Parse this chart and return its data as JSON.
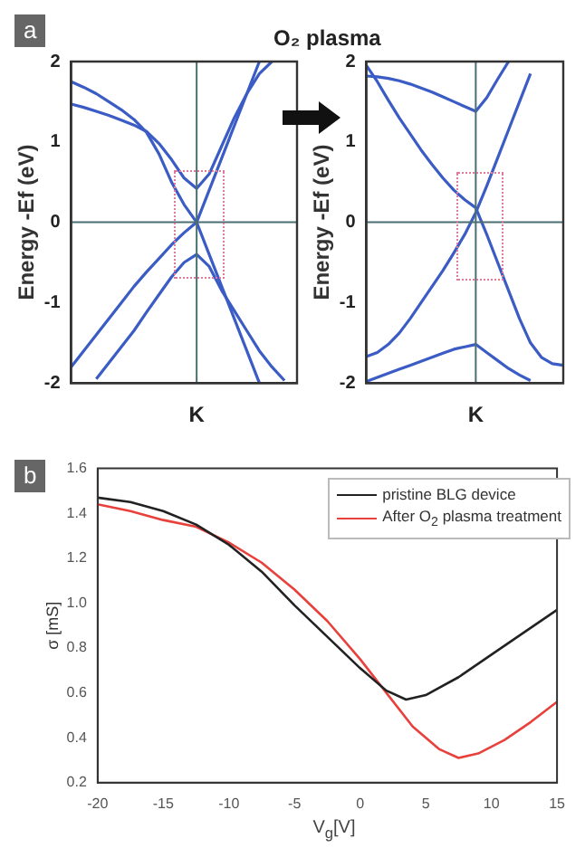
{
  "chart_data": [
    {
      "type": "line",
      "ylabel": "Energy -Ef (eV)",
      "annotations": [
        "a"
      ],
      "categories": [
        null,
        null,
        null,
        null,
        null,
        null,
        null,
        null,
        null,
        null,
        "K",
        null,
        null,
        null,
        null,
        null,
        null,
        null,
        null
      ],
      "ylim": [
        -2,
        2
      ],
      "yticks": [
        -2,
        -1,
        0,
        1,
        2
      ],
      "ref_lines": [
        {
          "axis": "y",
          "value": 0,
          "color": "#4a6e72"
        },
        {
          "axis": "x",
          "value": "K",
          "color": "#4a6e72"
        }
      ],
      "series": [
        {
          "color": "#3b5cc4",
          "values": [
            1.75,
            1.68,
            1.6,
            1.5,
            1.4,
            1.28,
            1.12,
            0.85,
            0.5,
            0.22,
            0,
            -0.4,
            -0.8,
            -1.2,
            -1.6,
            -2,
            null,
            null,
            null
          ]
        },
        {
          "color": "#3b5cc4",
          "values": [
            1.47,
            1.43,
            1.38,
            1.33,
            1.27,
            1.21,
            1.13,
            0.98,
            0.78,
            0.55,
            0.42,
            0.6,
            0.95,
            1.3,
            1.6,
            1.85,
            2,
            null,
            null
          ]
        },
        {
          "color": "#3b5cc4",
          "values": [
            -1.8,
            -1.6,
            -1.4,
            -1.2,
            -1,
            -0.8,
            -0.62,
            -0.45,
            -0.28,
            -0.13,
            0,
            0.4,
            0.8,
            1.2,
            1.6,
            2,
            null,
            null,
            null
          ]
        },
        {
          "color": "#3b5cc4",
          "values": [
            null,
            null,
            -1.95,
            -1.75,
            -1.55,
            -1.35,
            -1.12,
            -0.9,
            -0.68,
            -0.5,
            -0.4,
            -0.55,
            -0.85,
            -1.1,
            -1.35,
            -1.6,
            -1.8,
            -1.97,
            null
          ]
        }
      ]
    },
    {
      "type": "line",
      "ylabel": "Energy -Ef (eV)",
      "annotations": [
        "O₂ plasma"
      ],
      "categories": [
        null,
        null,
        null,
        null,
        null,
        null,
        null,
        null,
        null,
        null,
        "K",
        null,
        null,
        null,
        null,
        null,
        null,
        null,
        null
      ],
      "ylim": [
        -2,
        2
      ],
      "yticks": [
        -2,
        -1,
        0,
        1,
        2
      ],
      "ref_lines": [
        {
          "axis": "y",
          "value": 0,
          "color": "#4a6e72"
        },
        {
          "axis": "x",
          "value": "K",
          "color": "#4a6e72"
        }
      ],
      "series": [
        {
          "color": "#3b5cc4",
          "values": [
            1.82,
            1.81,
            1.79,
            1.76,
            1.72,
            1.67,
            1.62,
            1.56,
            1.5,
            1.44,
            1.38,
            1.55,
            1.78,
            2,
            null,
            null,
            null,
            null,
            null
          ]
        },
        {
          "color": "#3b5cc4",
          "values": [
            1.95,
            1.75,
            1.52,
            1.3,
            1.1,
            0.9,
            0.72,
            0.55,
            0.4,
            0.28,
            0.18,
            -0.15,
            -0.5,
            -0.85,
            -1.2,
            -1.5,
            -1.68,
            -1.76,
            -1.78
          ]
        },
        {
          "color": "#3b5cc4",
          "values": [
            -1.67,
            -1.62,
            -1.52,
            -1.38,
            -1.2,
            -1,
            -0.8,
            -0.6,
            -0.38,
            -0.15,
            0.12,
            0.45,
            0.8,
            1.15,
            1.5,
            1.85,
            null,
            null,
            null
          ]
        },
        {
          "color": "#3b5cc4",
          "values": [
            -1.98,
            -1.93,
            -1.88,
            -1.83,
            -1.78,
            -1.73,
            -1.68,
            -1.63,
            -1.58,
            -1.55,
            -1.52,
            -1.62,
            -1.72,
            -1.82,
            -1.9,
            -1.97,
            null,
            null,
            null
          ]
        }
      ]
    },
    {
      "type": "line",
      "xlabel": "V$_{g}$[V]",
      "ylabel": "σ [mS]",
      "annotations": [
        "b"
      ],
      "xlim": [
        -20,
        15
      ],
      "xticks": [
        -20,
        -15,
        -10,
        -5,
        0,
        5,
        10,
        15
      ],
      "ylim": [
        0.2,
        1.6
      ],
      "yticks": [
        0.2,
        0.4,
        0.6,
        0.8,
        {
          "value": 1,
          "label": "1.0"
        },
        1.2,
        1.4,
        1.6
      ],
      "legend": "top right",
      "series": [
        {
          "name": "pristine BLG device",
          "color": "#222222",
          "x": [
            -20,
            -17.5,
            -15,
            -12.5,
            -10,
            -7.5,
            -5,
            -2.5,
            0,
            2,
            3.5,
            5,
            7.5,
            10,
            12.5,
            15
          ],
          "values": [
            1.47,
            1.45,
            1.41,
            1.35,
            1.26,
            1.14,
            0.99,
            0.85,
            0.71,
            0.61,
            0.57,
            0.59,
            0.67,
            0.77,
            0.87,
            0.97
          ]
        },
        {
          "name": "After O$_{2}$ plasma treatment",
          "color": "#e8413c",
          "x": [
            -20,
            -17.5,
            -15,
            -12.5,
            -10,
            -7.5,
            -5,
            -2.5,
            0,
            2,
            4,
            6,
            7.5,
            9,
            11,
            13,
            15
          ],
          "values": [
            1.44,
            1.41,
            1.37,
            1.34,
            1.27,
            1.18,
            1.06,
            0.92,
            0.75,
            0.6,
            0.45,
            0.35,
            0.31,
            0.33,
            0.39,
            0.47,
            0.56
          ]
        }
      ]
    }
  ]
}
